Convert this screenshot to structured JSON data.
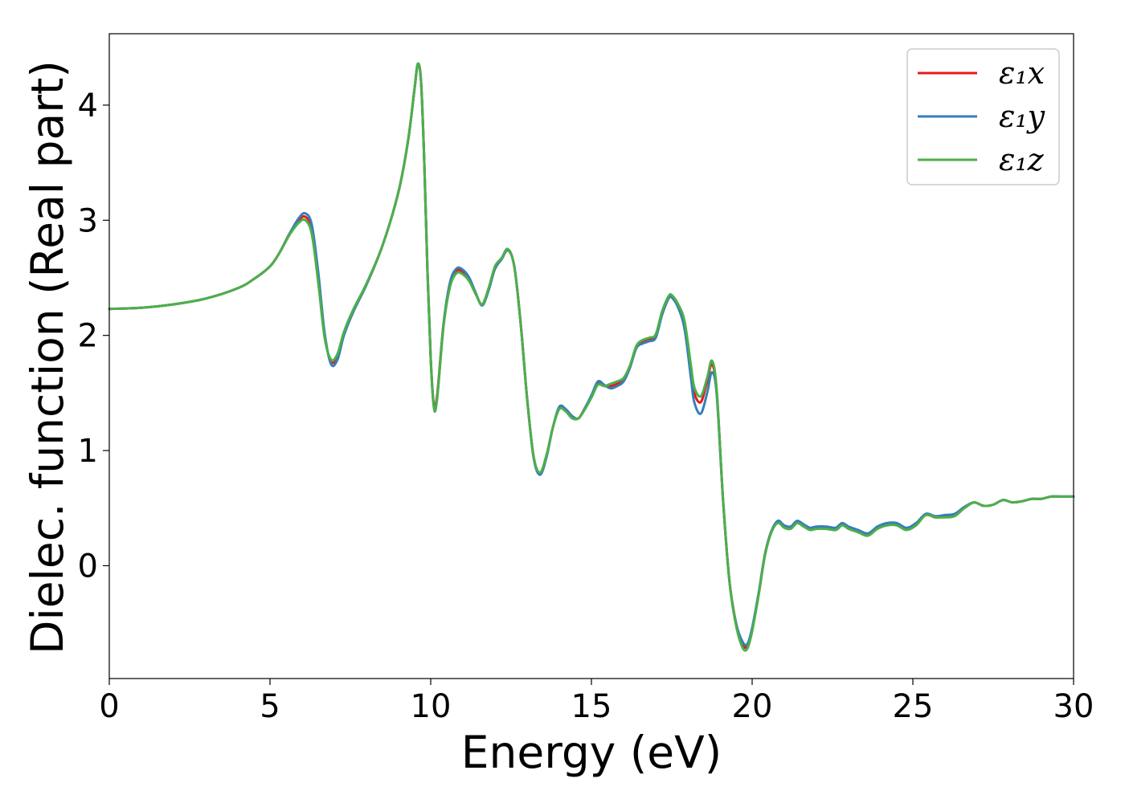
{
  "chart_data": {
    "type": "line",
    "xlabel": "Energy (eV)",
    "ylabel": "Dielec. function (Real part)",
    "xlim": [
      0,
      30
    ],
    "ylim": [
      -0.98,
      4.62
    ],
    "xticks": [
      0,
      5,
      10,
      15,
      20,
      25,
      30
    ],
    "yticks": [
      0,
      1,
      2,
      3,
      4
    ],
    "grid": false,
    "legend_position": "top-right",
    "x": [
      0,
      1,
      2,
      3,
      4,
      4.5,
      5,
      5.3,
      5.6,
      5.9,
      6.1,
      6.3,
      6.5,
      6.7,
      6.9,
      7.1,
      7.3,
      7.6,
      8.0,
      8.5,
      9.0,
      9.3,
      9.5,
      9.6,
      9.7,
      9.8,
      9.9,
      10.0,
      10.1,
      10.2,
      10.4,
      10.6,
      10.8,
      11.0,
      11.2,
      11.4,
      11.6,
      11.8,
      12.0,
      12.2,
      12.4,
      12.6,
      12.8,
      13.0,
      13.2,
      13.4,
      13.6,
      13.8,
      14.0,
      14.2,
      14.4,
      14.6,
      14.8,
      15.0,
      15.2,
      15.4,
      15.6,
      15.8,
      16.0,
      16.2,
      16.4,
      16.6,
      16.8,
      17.0,
      17.2,
      17.4,
      17.5,
      17.7,
      17.9,
      18.1,
      18.2,
      18.4,
      18.6,
      18.75,
      18.9,
      19.1,
      19.3,
      19.5,
      19.7,
      19.85,
      20.0,
      20.2,
      20.4,
      20.6,
      20.8,
      21.0,
      21.2,
      21.4,
      21.6,
      21.8,
      22.0,
      22.3,
      22.6,
      22.8,
      23.0,
      23.3,
      23.6,
      23.9,
      24.2,
      24.5,
      24.8,
      25.1,
      25.4,
      25.7,
      26.0,
      26.3,
      26.6,
      26.9,
      27.2,
      27.5,
      27.8,
      28.1,
      28.4,
      28.7,
      29.0,
      29.3,
      29.6,
      30.0
    ],
    "series": [
      {
        "name": "ε₁x",
        "color": "#e41a1c",
        "values": [
          2.23,
          2.24,
          2.27,
          2.32,
          2.41,
          2.49,
          2.6,
          2.72,
          2.88,
          3.0,
          3.03,
          2.92,
          2.5,
          2.0,
          1.77,
          1.82,
          2.02,
          2.22,
          2.44,
          2.78,
          3.25,
          3.7,
          4.15,
          4.35,
          4.2,
          3.5,
          2.55,
          1.8,
          1.4,
          1.48,
          2.1,
          2.44,
          2.56,
          2.55,
          2.48,
          2.36,
          2.27,
          2.4,
          2.58,
          2.66,
          2.74,
          2.6,
          2.1,
          1.45,
          0.95,
          0.8,
          0.95,
          1.2,
          1.37,
          1.35,
          1.29,
          1.28,
          1.37,
          1.47,
          1.58,
          1.56,
          1.56,
          1.58,
          1.62,
          1.73,
          1.9,
          1.95,
          1.97,
          2.0,
          2.2,
          2.33,
          2.34,
          2.25,
          2.1,
          1.7,
          1.5,
          1.42,
          1.6,
          1.75,
          1.5,
          0.55,
          -0.15,
          -0.5,
          -0.68,
          -0.7,
          -0.55,
          -0.25,
          0.1,
          0.3,
          0.38,
          0.34,
          0.33,
          0.38,
          0.35,
          0.32,
          0.33,
          0.33,
          0.32,
          0.36,
          0.33,
          0.3,
          0.27,
          0.33,
          0.36,
          0.36,
          0.32,
          0.36,
          0.44,
          0.42,
          0.43,
          0.44,
          0.5,
          0.55,
          0.52,
          0.53,
          0.57,
          0.55,
          0.56,
          0.58,
          0.58,
          0.6,
          0.6,
          0.6
        ]
      },
      {
        "name": "ε₁y",
        "color": "#377eb8",
        "values": [
          2.23,
          2.24,
          2.27,
          2.32,
          2.41,
          2.49,
          2.6,
          2.72,
          2.88,
          3.02,
          3.06,
          2.96,
          2.55,
          2.02,
          1.75,
          1.79,
          2.0,
          2.21,
          2.44,
          2.78,
          3.25,
          3.7,
          4.15,
          4.36,
          4.2,
          3.5,
          2.55,
          1.8,
          1.38,
          1.46,
          2.1,
          2.46,
          2.58,
          2.57,
          2.5,
          2.37,
          2.26,
          2.39,
          2.58,
          2.66,
          2.74,
          2.6,
          2.1,
          1.45,
          0.94,
          0.79,
          0.94,
          1.2,
          1.38,
          1.36,
          1.3,
          1.28,
          1.37,
          1.48,
          1.6,
          1.57,
          1.54,
          1.56,
          1.6,
          1.72,
          1.89,
          1.93,
          1.95,
          1.98,
          2.18,
          2.32,
          2.33,
          2.24,
          2.05,
          1.62,
          1.42,
          1.32,
          1.5,
          1.68,
          1.48,
          0.55,
          -0.15,
          -0.5,
          -0.66,
          -0.68,
          -0.54,
          -0.24,
          0.1,
          0.3,
          0.39,
          0.35,
          0.34,
          0.39,
          0.36,
          0.33,
          0.34,
          0.34,
          0.33,
          0.37,
          0.34,
          0.31,
          0.28,
          0.34,
          0.37,
          0.37,
          0.33,
          0.37,
          0.45,
          0.43,
          0.44,
          0.45,
          0.51,
          0.55,
          0.52,
          0.53,
          0.57,
          0.55,
          0.56,
          0.58,
          0.58,
          0.6,
          0.6,
          0.6
        ]
      },
      {
        "name": "ε₁z",
        "color": "#4daf4a",
        "values": [
          2.23,
          2.24,
          2.27,
          2.32,
          2.41,
          2.49,
          2.6,
          2.72,
          2.87,
          2.98,
          3.0,
          2.88,
          2.46,
          1.98,
          1.79,
          1.84,
          2.03,
          2.23,
          2.45,
          2.78,
          3.25,
          3.7,
          4.15,
          4.36,
          4.2,
          3.5,
          2.55,
          1.8,
          1.37,
          1.45,
          2.08,
          2.42,
          2.54,
          2.53,
          2.47,
          2.36,
          2.27,
          2.41,
          2.6,
          2.67,
          2.75,
          2.6,
          2.1,
          1.45,
          0.95,
          0.81,
          0.96,
          1.2,
          1.36,
          1.34,
          1.28,
          1.28,
          1.36,
          1.46,
          1.57,
          1.56,
          1.58,
          1.6,
          1.63,
          1.74,
          1.91,
          1.96,
          1.98,
          2.01,
          2.21,
          2.34,
          2.35,
          2.27,
          2.12,
          1.73,
          1.55,
          1.47,
          1.63,
          1.78,
          1.52,
          0.55,
          -0.15,
          -0.52,
          -0.71,
          -0.72,
          -0.57,
          -0.26,
          0.09,
          0.29,
          0.37,
          0.33,
          0.32,
          0.37,
          0.34,
          0.31,
          0.32,
          0.32,
          0.31,
          0.35,
          0.32,
          0.29,
          0.26,
          0.32,
          0.35,
          0.35,
          0.31,
          0.35,
          0.44,
          0.42,
          0.42,
          0.43,
          0.5,
          0.55,
          0.52,
          0.53,
          0.57,
          0.55,
          0.56,
          0.58,
          0.58,
          0.6,
          0.6,
          0.6
        ]
      }
    ]
  }
}
